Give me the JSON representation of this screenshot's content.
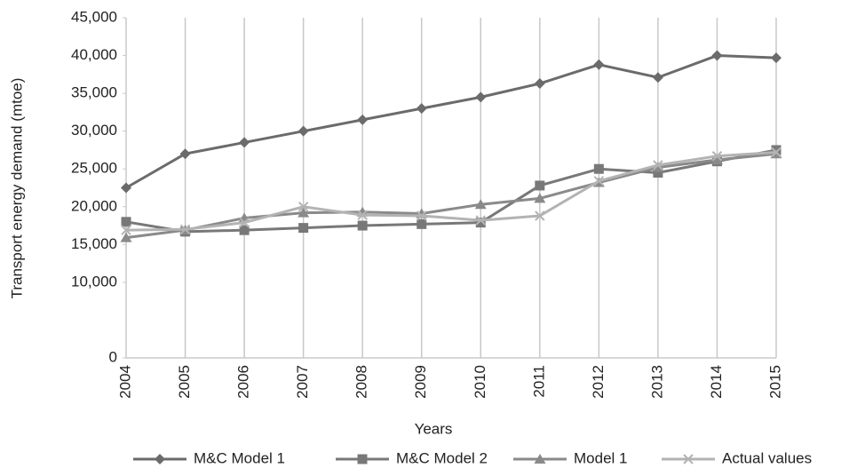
{
  "chart_data": {
    "type": "line",
    "x_label": "Years",
    "y_label": "Transport energy demand (mtoe)",
    "categories": [
      "2004",
      "2005",
      "2006",
      "2007",
      "2008",
      "2009",
      "2010",
      "2011",
      "2012",
      "2013",
      "2014",
      "2015"
    ],
    "series": [
      {
        "name": "M&C Model 1",
        "color": "#6b6b6b",
        "marker": "diamond",
        "values": [
          22500,
          27000,
          28500,
          30000,
          31500,
          33000,
          34500,
          36300,
          38800,
          37100,
          40000,
          39700
        ]
      },
      {
        "name": "M&C Model 2",
        "color": "#787878",
        "marker": "square",
        "values": [
          18000,
          16700,
          16900,
          17200,
          17500,
          17700,
          17900,
          22800,
          25000,
          24500,
          26000,
          27500
        ]
      },
      {
        "name": "Model 1",
        "color": "#8a8a8a",
        "marker": "triangle",
        "values": [
          15900,
          16900,
          18500,
          19200,
          19300,
          19100,
          20300,
          21100,
          23200,
          25200,
          26200,
          27000
        ]
      },
      {
        "name": "Actual values",
        "color": "#b3b3b3",
        "marker": "x",
        "values": [
          16900,
          17000,
          17900,
          20000,
          18900,
          18800,
          18200,
          18800,
          23400,
          25500,
          26700,
          27200
        ]
      }
    ],
    "ylim": [
      0,
      45000
    ],
    "yticks": [
      0,
      {
        "value": 10000,
        "label": "10,000"
      },
      {
        "value": 15000,
        "label": "15,000"
      },
      {
        "value": 20000,
        "label": "20,000"
      },
      {
        "value": 25000,
        "label": "25,000"
      },
      {
        "value": 30000,
        "label": "30,000"
      },
      {
        "value": 35000,
        "label": "35,000"
      },
      {
        "value": 40000,
        "label": "40,000"
      },
      {
        "value": 45000,
        "label": "45,000"
      }
    ],
    "grid": "x",
    "legend": "bottom"
  }
}
